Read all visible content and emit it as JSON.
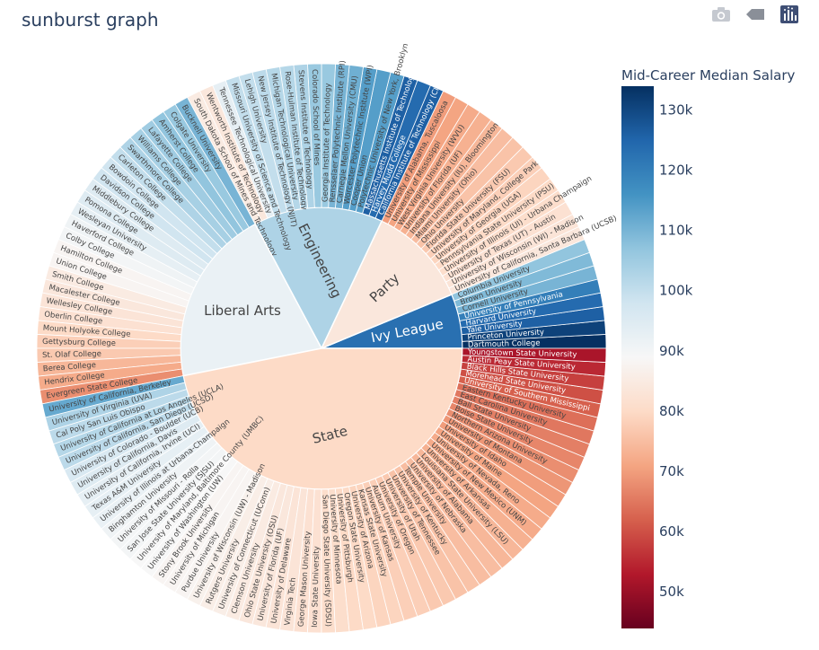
{
  "title": "sunburst graph",
  "modebar": {
    "icons": [
      "camera-icon",
      "tag-icon",
      "plotly-logo-icon"
    ]
  },
  "colorbar": {
    "title": "Mid-Career Median Salary",
    "ticks": [
      "50k",
      "60k",
      "70k",
      "80k",
      "90k",
      "100k",
      "110k",
      "120k",
      "130k"
    ],
    "tick_values": [
      50000,
      60000,
      70000,
      80000,
      90000,
      100000,
      110000,
      120000,
      130000
    ],
    "range": [
      44000,
      134000
    ],
    "colors": [
      "#67001f",
      "#b2182b",
      "#d6604d",
      "#f4a582",
      "#fddbc7",
      "#f7f7f7",
      "#d1e5f0",
      "#92c5de",
      "#4393c3",
      "#2166ac",
      "#053061"
    ]
  },
  "chart_data": {
    "type": "sunburst",
    "color_metric": "Mid-Career Median Salary",
    "categories": [
      {
        "name": "Ivy League",
        "color_value": 123000,
        "schools": [
          {
            "label": "Dartmouth College",
            "value": 134000
          },
          {
            "label": "Princeton University",
            "value": 131000
          },
          {
            "label": "Yale University",
            "value": 126000
          },
          {
            "label": "Harvard University",
            "value": 124000
          },
          {
            "label": "University of Pennsylvania",
            "value": 120000
          },
          {
            "label": "Cornell University",
            "value": 110000
          },
          {
            "label": "Brown University",
            "value": 109000
          },
          {
            "label": "Columbia University",
            "value": 107000
          }
        ]
      },
      {
        "name": "Party",
        "color_value": 84000,
        "schools": [
          {
            "label": "University of California, Santa Barbara (UCSB)",
            "value": 84000
          },
          {
            "label": "University of Wisconsin (WI) - Madison",
            "value": 83000
          },
          {
            "label": "University of Texas (UT) - Austin",
            "value": 82000
          },
          {
            "label": "University of Illinois (UI) - Urbana Champaign",
            "value": 81000
          },
          {
            "label": "Pennsylvania State University (PSU)",
            "value": 80000
          },
          {
            "label": "University of Georgia (UGA)",
            "value": 79000
          },
          {
            "label": "University of Maryland, College Park",
            "value": 78000
          },
          {
            "label": "Florida State University (FSU)",
            "value": 77000
          },
          {
            "label": "Ohio University",
            "value": 76000
          },
          {
            "label": "Miami University (Ohio)",
            "value": 75000
          },
          {
            "label": "Indiana University (IU), Bloomington",
            "value": 74000
          },
          {
            "label": "University of Florida (UF)",
            "value": 73000
          },
          {
            "label": "West Virginia University (WVU)",
            "value": 72000
          },
          {
            "label": "University of Mississippi",
            "value": 71000
          },
          {
            "label": "University of Alabama, Tuscaloosa",
            "value": 70000
          }
        ]
      },
      {
        "name": "Engineering",
        "color_value": 103000,
        "schools": [
          {
            "label": "California Institute of Technology (CIT)",
            "value": 126000
          },
          {
            "label": "Harvey Mudd College",
            "value": 124000
          },
          {
            "label": "Massachusetts Institute of Technology (MIT)",
            "value": 126000
          },
          {
            "label": "Polytechnic University of New York, Brooklyn",
            "value": 114000
          },
          {
            "label": "Cooper Union",
            "value": 114000
          },
          {
            "label": "Worcester Polytechnic Institute (WPI)",
            "value": 114000
          },
          {
            "label": "Carnegie Mellon University (CMU)",
            "value": 111000
          },
          {
            "label": "Rensselaer Polytechnic Institute (RPI)",
            "value": 110000
          },
          {
            "label": "Georgia Institute of Technology",
            "value": 106000
          },
          {
            "label": "Colorado School of Mines",
            "value": 106000
          },
          {
            "label": "Stevens Institute of Technology",
            "value": 103000
          },
          {
            "label": "Rose-Hulman Institute of Technology",
            "value": 102000
          },
          {
            "label": "Michigan Technological University",
            "value": 102000
          },
          {
            "label": "New Jersey Institute of Technology (NJIT)",
            "value": 101000
          },
          {
            "label": "Lehigh University",
            "value": 100000
          },
          {
            "label": "Missouri University of Science and Technology",
            "value": 100000
          },
          {
            "label": "Tennessee Technological University",
            "value": 93000
          },
          {
            "label": "Wentworth Institute of Technology",
            "value": 84000
          },
          {
            "label": "South Dakota School of Mines and Technology",
            "value": 85000
          }
        ]
      },
      {
        "name": "Liberal Arts",
        "color_value": 92000,
        "schools": [
          {
            "label": "Bucknell University",
            "value": 110000
          },
          {
            "label": "Colgate University",
            "value": 106000
          },
          {
            "label": "Amherst College",
            "value": 107000
          },
          {
            "label": "Lafayette College",
            "value": 105000
          },
          {
            "label": "Williams College",
            "value": 104000
          },
          {
            "label": "Swarthmore College",
            "value": 103000
          },
          {
            "label": "Carleton College",
            "value": 100000
          },
          {
            "label": "Bowdoin College",
            "value": 98000
          },
          {
            "label": "Davidson College",
            "value": 98000
          },
          {
            "label": "Middlebury College",
            "value": 95000
          },
          {
            "label": "Pomona College",
            "value": 95000
          },
          {
            "label": "Wesleyan University",
            "value": 93000
          },
          {
            "label": "Haverford College",
            "value": 91000
          },
          {
            "label": "Colby College",
            "value": 90000
          },
          {
            "label": "Hamilton College",
            "value": 88000
          },
          {
            "label": "Union College",
            "value": 88000
          },
          {
            "label": "Smith College",
            "value": 85000
          },
          {
            "label": "Macalester College",
            "value": 84000
          },
          {
            "label": "Wellesley College",
            "value": 83000
          },
          {
            "label": "Oberlin College",
            "value": 82000
          },
          {
            "label": "Mount Holyoke College",
            "value": 80000
          },
          {
            "label": "Gettysburg College",
            "value": 78000
          },
          {
            "label": "St. Olaf College",
            "value": 77000
          },
          {
            "label": "Berea College",
            "value": 74000
          },
          {
            "label": "Hendrix College",
            "value": 72000
          },
          {
            "label": "Evergreen State College",
            "value": 68000
          }
        ]
      },
      {
        "name": "State",
        "color_value": 80000,
        "schools": [
          {
            "label": "University of California, Berkeley",
            "value": 112000
          },
          {
            "label": "University of Virginia (UVA)",
            "value": 103000
          },
          {
            "label": "Cal Poly San Luis Obispo",
            "value": 101000
          },
          {
            "label": "University of California at Los Angeles (UCLA)",
            "value": 102000
          },
          {
            "label": "University of California, San Diego (UCSD)",
            "value": 101000
          },
          {
            "label": "University of Colorado - Boulder (UCB)",
            "value": 96000
          },
          {
            "label": "University of California, Davis",
            "value": 95000
          },
          {
            "label": "University of California, Irvine (UCI)",
            "value": 93000
          },
          {
            "label": "Texas A&M University",
            "value": 93000
          },
          {
            "label": "University of Illinois at Urbana-Champaign",
            "value": 92000
          },
          {
            "label": "Binghamton University",
            "value": 91000
          },
          {
            "label": "University of Missouri - Rolla",
            "value": 90000
          },
          {
            "label": "San Jose State University (SJSU)",
            "value": 90000
          },
          {
            "label": "University of Maryland, Baltimore County (UMBC)",
            "value": 89000
          },
          {
            "label": "University of Washington (UW)",
            "value": 89000
          },
          {
            "label": "Stony Brook University",
            "value": 88000
          },
          {
            "label": "University of Michigan",
            "value": 88000
          },
          {
            "label": "Purdue University",
            "value": 88000
          },
          {
            "label": "University of Wisconsin (UW) - Madison",
            "value": 87000
          },
          {
            "label": "Rutgers University",
            "value": 86000
          },
          {
            "label": "University of Connecticut (UConn)",
            "value": 86000
          },
          {
            "label": "Clemson University",
            "value": 85000
          },
          {
            "label": "Ohio State University (OSU)",
            "value": 84000
          },
          {
            "label": "University of Florida (UF)",
            "value": 84000
          },
          {
            "label": "University of Delaware",
            "value": 83000
          },
          {
            "label": "Virginia Tech",
            "value": 83000
          },
          {
            "label": "George Mason University",
            "value": 82000
          },
          {
            "label": "Iowa State University",
            "value": 82000
          },
          {
            "label": "San Diego State University (SDSU)",
            "value": 81000
          },
          {
            "label": "University of Minnesota",
            "value": 81000
          },
          {
            "label": "University of Pittsburgh",
            "value": 80000
          },
          {
            "label": "Oregon State University",
            "value": 80000
          },
          {
            "label": "University of Arizona",
            "value": 79000
          },
          {
            "label": "Kansas State University",
            "value": 79000
          },
          {
            "label": "University of Kansas",
            "value": 78000
          },
          {
            "label": "Auburn University",
            "value": 78000
          },
          {
            "label": "University of Oregon",
            "value": 77000
          },
          {
            "label": "University of Utah",
            "value": 77000
          },
          {
            "label": "University of Tennessee",
            "value": 76000
          },
          {
            "label": "University of Kentucky",
            "value": 76000
          },
          {
            "label": "Temple University",
            "value": 75000
          },
          {
            "label": "University of Nebraska",
            "value": 75000
          },
          {
            "label": "University of Alabama",
            "value": 74000
          },
          {
            "label": "Louisiana State University (LSU)",
            "value": 74000
          },
          {
            "label": "University of Arkansas",
            "value": 73000
          },
          {
            "label": "University of New Mexico (UNM)",
            "value": 72000
          },
          {
            "label": "University of Nevada, Reno",
            "value": 72000
          },
          {
            "label": "University of Maine",
            "value": 71000
          },
          {
            "label": "University of Idaho",
            "value": 70000
          },
          {
            "label": "University of Montana",
            "value": 69000
          },
          {
            "label": "Northern Arizona University",
            "value": 68000
          },
          {
            "label": "Boise State University",
            "value": 67000
          },
          {
            "label": "Ball State University",
            "value": 66000
          },
          {
            "label": "East Carolina University",
            "value": 65000
          },
          {
            "label": "Eastern Kentucky University",
            "value": 64000
          },
          {
            "label": "University of Southern Mississippi",
            "value": 62000
          },
          {
            "label": "Morehead State University",
            "value": 60000
          },
          {
            "label": "Black Hills State University",
            "value": 58000
          },
          {
            "label": "Austin Peay State University",
            "value": 55000
          },
          {
            "label": "Youngstown State University",
            "value": 52000
          }
        ]
      }
    ]
  }
}
